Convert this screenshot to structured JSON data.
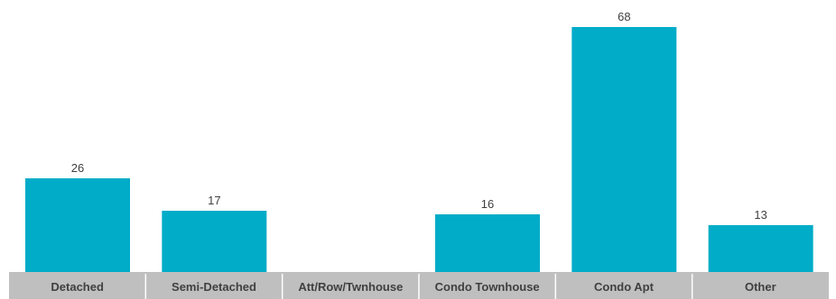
{
  "chart_data": {
    "type": "bar",
    "categories": [
      "Detached",
      "Semi-Detached",
      "Att/Row/Twnhouse",
      "Condo Townhouse",
      "Condo Apt",
      "Other"
    ],
    "values": [
      26,
      17,
      0,
      16,
      68,
      13
    ],
    "value_labels": [
      "26",
      "17",
      "",
      "16",
      "68",
      "13"
    ],
    "ylim": [
      0,
      68
    ],
    "grid": false,
    "legend": "none",
    "colors": {
      "bar": "#00acc8",
      "axis_band": "#bfbfbf",
      "band_divider": "#ffffff",
      "label_text": "#404040"
    }
  }
}
